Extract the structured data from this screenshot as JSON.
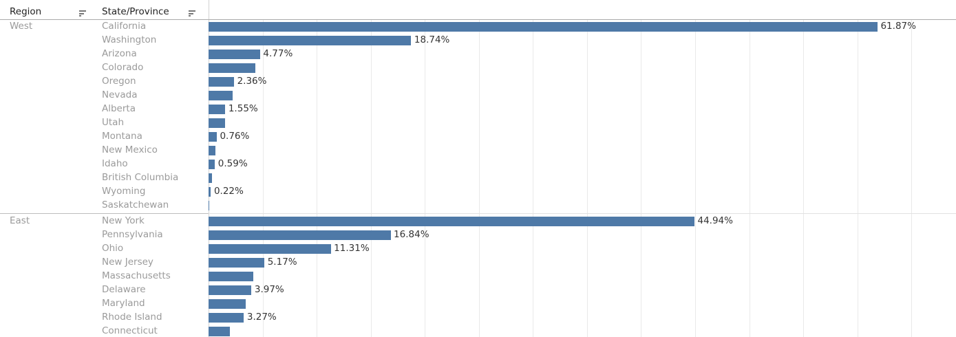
{
  "columns": [
    {
      "label": "Region"
    },
    {
      "label": "State/Province"
    }
  ],
  "colors": {
    "bar": "#4e79a7",
    "value_label": "#333333",
    "row_label": "#9a9a9a",
    "header_text": "#1f1f1f",
    "gridline": "#e9e9e9"
  },
  "chart_data": {
    "type": "bar",
    "orientation": "horizontal",
    "unit": "percent",
    "title": "",
    "xlabel": "",
    "ylabel": "",
    "axis": {
      "min": 0,
      "visible_max": 69,
      "gridline_step": 5,
      "tick_labels_shown": false
    },
    "bar_color": "#4e79a7",
    "groups": [
      {
        "region": "West",
        "rows": [
          {
            "state": "California",
            "value": 61.87,
            "label": "61.87%"
          },
          {
            "state": "Washington",
            "value": 18.74,
            "label": "18.74%"
          },
          {
            "state": "Arizona",
            "value": 4.77,
            "label": "4.77%"
          },
          {
            "state": "Colorado",
            "value": 4.33,
            "label": ""
          },
          {
            "state": "Oregon",
            "value": 2.36,
            "label": "2.36%"
          },
          {
            "state": "Nevada",
            "value": 2.2,
            "label": ""
          },
          {
            "state": "Alberta",
            "value": 1.55,
            "label": "1.55%"
          },
          {
            "state": "Utah",
            "value": 1.5,
            "label": ""
          },
          {
            "state": "Montana",
            "value": 0.76,
            "label": "0.76%"
          },
          {
            "state": "New Mexico",
            "value": 0.65,
            "label": ""
          },
          {
            "state": "Idaho",
            "value": 0.59,
            "label": "0.59%"
          },
          {
            "state": "British Columbia",
            "value": 0.35,
            "label": ""
          },
          {
            "state": "Wyoming",
            "value": 0.22,
            "label": "0.22%"
          },
          {
            "state": "Saskatchewan",
            "value": 0.01,
            "label": ""
          }
        ]
      },
      {
        "region": "East",
        "rows": [
          {
            "state": "New York",
            "value": 44.94,
            "label": "44.94%"
          },
          {
            "state": "Pennsylvania",
            "value": 16.84,
            "label": "16.84%"
          },
          {
            "state": "Ohio",
            "value": 11.31,
            "label": "11.31%"
          },
          {
            "state": "New Jersey",
            "value": 5.17,
            "label": "5.17%"
          },
          {
            "state": "Massachusetts",
            "value": 4.15,
            "label": ""
          },
          {
            "state": "Delaware",
            "value": 3.97,
            "label": "3.97%"
          },
          {
            "state": "Maryland",
            "value": 3.45,
            "label": ""
          },
          {
            "state": "Rhode Island",
            "value": 3.27,
            "label": "3.27%"
          },
          {
            "state": "Connecticut",
            "value": 1.95,
            "label": ""
          }
        ]
      }
    ]
  }
}
